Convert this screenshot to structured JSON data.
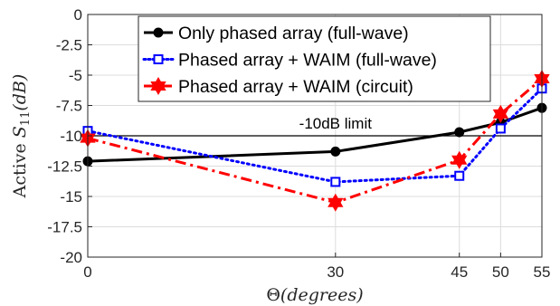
{
  "chart_data": {
    "type": "line",
    "xlabel_main": "Θ",
    "xlabel_paren": "(degrees)",
    "ylabel_prefix": "Active ",
    "ylabel_s": "S",
    "ylabel_sub": "11",
    "ylabel_paren": "(dB)",
    "xlim": [
      0,
      55
    ],
    "ylim": [
      -20,
      0
    ],
    "x_ticks": [
      0,
      30,
      45,
      50,
      55
    ],
    "x_tick_labels": [
      "0",
      "30",
      "45",
      "50",
      "55"
    ],
    "y_ticks": [
      0,
      -2.5,
      -5,
      -7.5,
      -10,
      -12.5,
      -15,
      -17.5,
      -20
    ],
    "y_tick_labels": [
      "0",
      "-2.5",
      "-5",
      "-7.5",
      "-10",
      "-12.5",
      "-15",
      "-17.5",
      "-20"
    ],
    "grid": true,
    "legend_position": "top-right",
    "x": [
      0,
      30,
      45,
      50,
      55
    ],
    "series": [
      {
        "name": "Only phased array (full-wave)",
        "values": [
          -12.1,
          -11.3,
          -9.7,
          -8.9,
          -7.7
        ],
        "color": "#000000",
        "line": "solid",
        "marker": "circle"
      },
      {
        "name": "Phased array + WAIM (full-wave)",
        "values": [
          -9.6,
          -13.8,
          -13.3,
          -9.4,
          -6.1
        ],
        "color": "#0000ff",
        "line": "dotted",
        "marker": "square"
      },
      {
        "name": "Phased array + WAIM (circuit)",
        "values": [
          -10.2,
          -15.5,
          -12.0,
          -8.2,
          -5.3
        ],
        "color": "#ff0000",
        "line": "dashdot",
        "marker": "hexagram"
      }
    ],
    "annotations": [
      {
        "text": "-10dB limit",
        "x": 30,
        "y": -10
      }
    ]
  }
}
